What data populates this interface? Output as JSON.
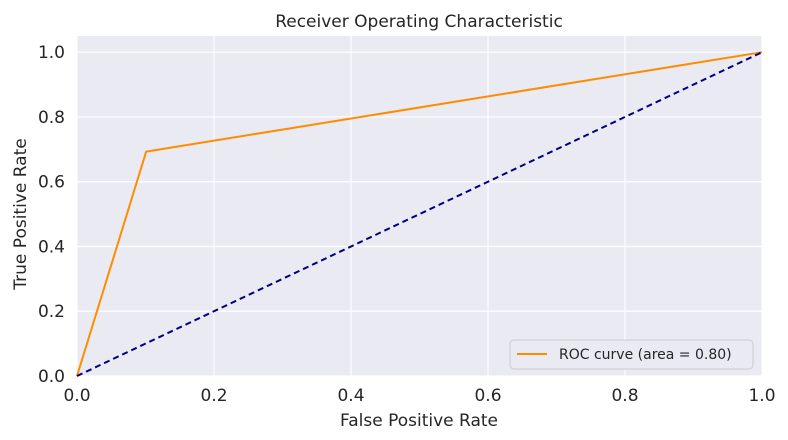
{
  "chart_data": {
    "type": "line",
    "title": "Receiver Operating Characteristic",
    "xlabel": "False Positive Rate",
    "ylabel": "True Positive Rate",
    "xlim": [
      0.0,
      1.0
    ],
    "ylim": [
      0.0,
      1.05
    ],
    "x_ticks": [
      0.0,
      0.2,
      0.4,
      0.6,
      0.8,
      1.0
    ],
    "y_ticks": [
      0.0,
      0.2,
      0.4,
      0.6,
      0.8,
      1.0
    ],
    "x_tick_labels": [
      "0.0",
      "0.2",
      "0.4",
      "0.6",
      "0.8",
      "1.0"
    ],
    "y_tick_labels": [
      "0.0",
      "0.2",
      "0.4",
      "0.6",
      "0.8",
      "1.0"
    ],
    "grid": true,
    "legend_position": "lower-right",
    "series": [
      {
        "name": "ROC curve (area = 0.80)",
        "color": "#ff8c00",
        "style": "solid",
        "x": [
          0.0,
          0.101,
          1.0
        ],
        "y": [
          0.0,
          0.693,
          1.0
        ]
      },
      {
        "color": "#000080",
        "style": "dashed",
        "x": [
          0.0,
          1.0
        ],
        "y": [
          0.0,
          1.0
        ]
      }
    ]
  }
}
